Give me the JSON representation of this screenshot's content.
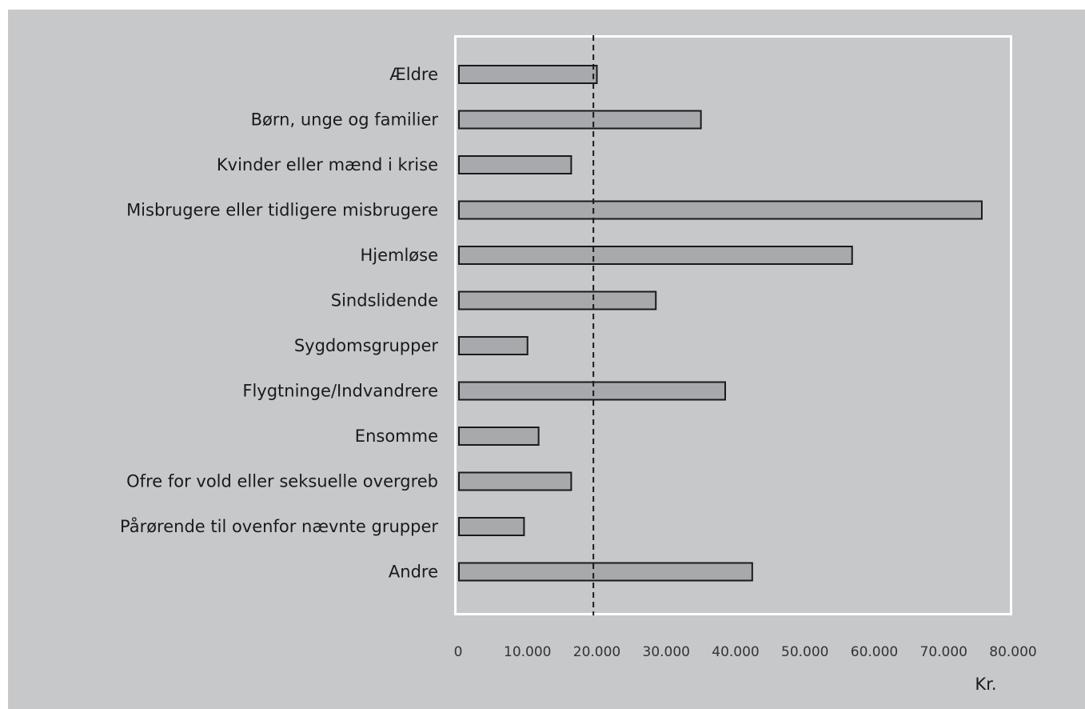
{
  "chart_data": {
    "type": "bar",
    "orientation": "horizontal",
    "categories": [
      "Ældre",
      "Børn, unge og familier",
      "Kvinder eller mænd i krise",
      "Misbrugere eller tidligere misbrugere",
      "Hjemløse",
      "Sindslidende",
      "Sygdomsgrupper",
      "Flygtninge/Indvandrere",
      "Ensomme",
      "Ofre for vold eller seksuelle overgreb",
      "Pårørende til ovenfor nævnte grupper",
      "Andre"
    ],
    "values": [
      20000,
      35000,
      16300,
      75500,
      56800,
      28500,
      10000,
      38500,
      11600,
      16300,
      9500,
      42400
    ],
    "xlabel": "Kr.",
    "ylabel": "",
    "xlim": [
      0,
      80000
    ],
    "xticks": [
      "0",
      "10.000",
      "20.000",
      "30.000",
      "40.000",
      "50.000",
      "60.000",
      "70.000",
      "80.000"
    ],
    "reference_line": {
      "value": 19500,
      "style": "dashed"
    },
    "grid": false,
    "colors": {
      "background": "#c7c8ca",
      "bar_fill": "#a7a9ac",
      "bar_stroke": "#1a1a1a",
      "plot_border": "#ffffff"
    }
  }
}
